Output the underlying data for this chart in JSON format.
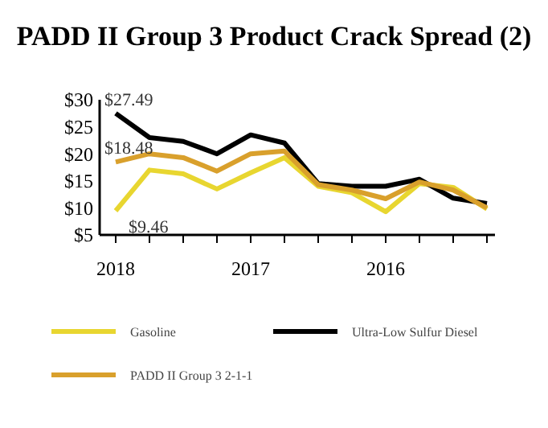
{
  "chart_data": {
    "type": "line",
    "title": "PADD II Group 3 Product Crack Spread (2)",
    "categories": [
      "2018",
      null,
      null,
      null,
      "2017",
      null,
      null,
      null,
      "2016",
      null,
      null,
      null
    ],
    "series": [
      {
        "name": "Gasoline",
        "color": "#e8d630",
        "values": [
          9.46,
          17,
          16.3,
          13.5,
          16.5,
          19.3,
          14,
          12.8,
          9.3,
          14.5,
          13.8,
          9.8
        ]
      },
      {
        "name": "Ultra-Low Sulfur Diesel",
        "color": "#000000",
        "values": [
          27.49,
          23,
          22.3,
          20,
          23.5,
          22,
          14.5,
          14,
          14,
          15.3,
          11.8,
          10.8
        ]
      },
      {
        "name": "PADD II Group 3 2-1-1",
        "color": "#d9a02c",
        "values": [
          18.48,
          20,
          19.3,
          16.8,
          20,
          20.5,
          14.3,
          13.3,
          11.7,
          14.8,
          13.3,
          10
        ]
      }
    ],
    "ylim": [
      5,
      30
    ],
    "yticks": [
      {
        "value": 5,
        "label": "$5"
      },
      {
        "value": 10,
        "label": "$10"
      },
      {
        "value": 15,
        "label": "$15"
      },
      {
        "value": 20,
        "label": "$20"
      },
      {
        "value": 25,
        "label": "$25"
      },
      {
        "value": 30,
        "label": "$30"
      }
    ],
    "annotations": [
      {
        "text": "$27.49",
        "x": "2018",
        "y": 27.49
      },
      {
        "text": "$18.48",
        "x": "2018",
        "y": 18.48
      },
      {
        "text": "$9.46",
        "x": "2018",
        "y": 9.46
      }
    ],
    "grid": false,
    "legend": "bottom",
    "line_style": "solid"
  }
}
